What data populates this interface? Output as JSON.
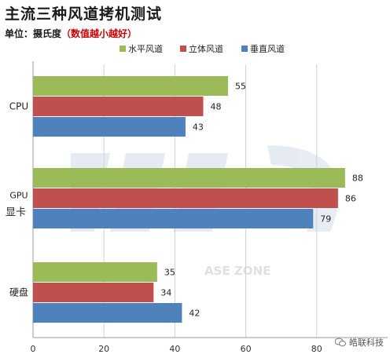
{
  "header": {
    "title": "主流三种风道拷机测试",
    "unit_label": "单位：摄氏度",
    "unit_note": "（数值越小越好）"
  },
  "watermark": {
    "text": "ASE ZONE"
  },
  "brand": {
    "name": "皓联科技"
  },
  "chart_data": {
    "type": "bar",
    "orientation": "horizontal",
    "categories": [
      "CPU",
      "GPU 显卡",
      "硬盘"
    ],
    "series": [
      {
        "name": "水平风道",
        "color": "#9bbb59",
        "values": [
          55,
          88,
          35
        ]
      },
      {
        "name": "立体风道",
        "color": "#c0504d",
        "values": [
          48,
          86,
          34
        ]
      },
      {
        "name": "垂直风道",
        "color": "#4f81bd",
        "values": [
          43,
          79,
          42
        ]
      }
    ],
    "xlim": [
      0,
      100
    ],
    "x_ticks": [
      0,
      20,
      40,
      60,
      80
    ],
    "x_tick_labels": [
      "0",
      "20",
      "40",
      "60",
      "80"
    ],
    "grid": true,
    "legend_position": "top-right"
  }
}
